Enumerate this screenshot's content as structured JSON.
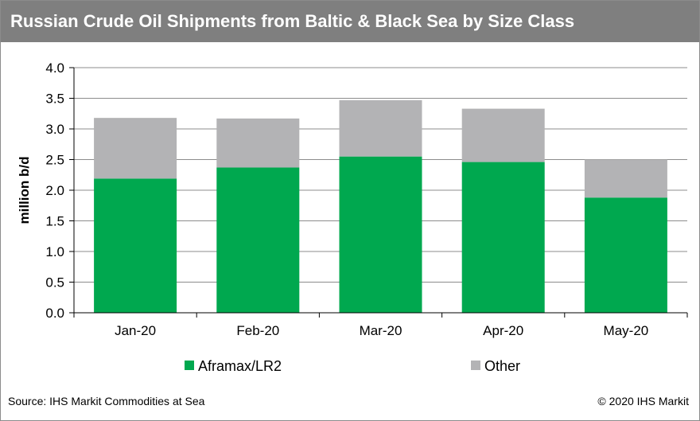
{
  "chart_data": {
    "type": "bar",
    "stacked": true,
    "title": "Russian Crude Oil Shipments from Baltic & Black Sea by Size Class",
    "xlabel": "",
    "ylabel": "million b/d",
    "ylim": [
      0,
      4.0
    ],
    "yticks": [
      "0.0",
      "0.5",
      "1.0",
      "1.5",
      "2.0",
      "2.5",
      "3.0",
      "3.5",
      "4.0"
    ],
    "grid": true,
    "legend_position": "bottom",
    "categories": [
      "Jan-20",
      "Feb-20",
      "Mar-20",
      "Apr-20",
      "May-20"
    ],
    "series": [
      {
        "name": "Aframax/LR2",
        "color": "#00a84f",
        "values": [
          2.19,
          2.37,
          2.55,
          2.46,
          1.88
        ]
      },
      {
        "name": "Other",
        "color": "#b3b3b5",
        "values": [
          0.99,
          0.8,
          0.92,
          0.87,
          0.62
        ]
      }
    ]
  },
  "footer": {
    "source": "Source: IHS Markit Commodities at Sea",
    "copyright": "© 2020 IHS Markit"
  }
}
